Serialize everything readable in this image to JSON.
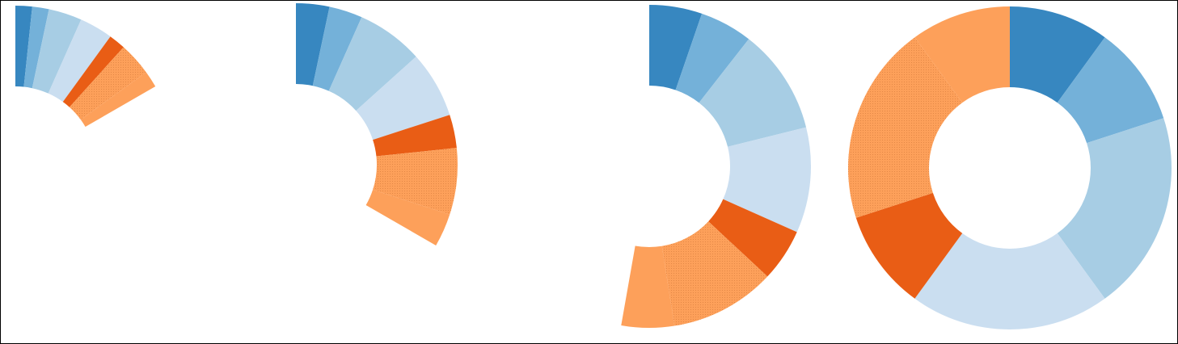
{
  "chart_data": [
    {
      "type": "pie",
      "variant": "donut",
      "sweep_degrees": 60,
      "values": [
        1,
        1,
        2,
        2,
        1,
        2,
        1
      ],
      "colors": [
        "#3787c0",
        "#74b1d9",
        "#a7cde4",
        "#cadef0",
        "#e95d15",
        "#fda05a",
        "#fda05a"
      ],
      "hatched": [
        false,
        false,
        false,
        false,
        false,
        true,
        false
      ]
    },
    {
      "type": "pie",
      "variant": "donut",
      "sweep_degrees": 120,
      "values": [
        1,
        1,
        2,
        2,
        1,
        2,
        1
      ],
      "colors": [
        "#3787c0",
        "#74b1d9",
        "#a7cde4",
        "#cadef0",
        "#e95d15",
        "#fda05a",
        "#fda05a"
      ],
      "hatched": [
        false,
        false,
        false,
        false,
        false,
        true,
        false
      ]
    },
    {
      "type": "pie",
      "variant": "donut",
      "sweep_degrees": 190,
      "values": [
        1,
        1,
        2,
        2,
        1,
        2,
        1
      ],
      "colors": [
        "#3787c0",
        "#74b1d9",
        "#a7cde4",
        "#cadef0",
        "#e95d15",
        "#fda05a",
        "#fda05a"
      ],
      "hatched": [
        false,
        false,
        false,
        false,
        false,
        true,
        false
      ]
    },
    {
      "type": "pie",
      "variant": "donut",
      "sweep_degrees": 360,
      "values": [
        1,
        1,
        2,
        2,
        1,
        2,
        1
      ],
      "colors": [
        "#3787c0",
        "#74b1d9",
        "#a7cde4",
        "#cadef0",
        "#e95d15",
        "#fda05a",
        "#fda05a"
      ],
      "hatched": [
        false,
        false,
        false,
        false,
        false,
        true,
        false
      ]
    }
  ]
}
